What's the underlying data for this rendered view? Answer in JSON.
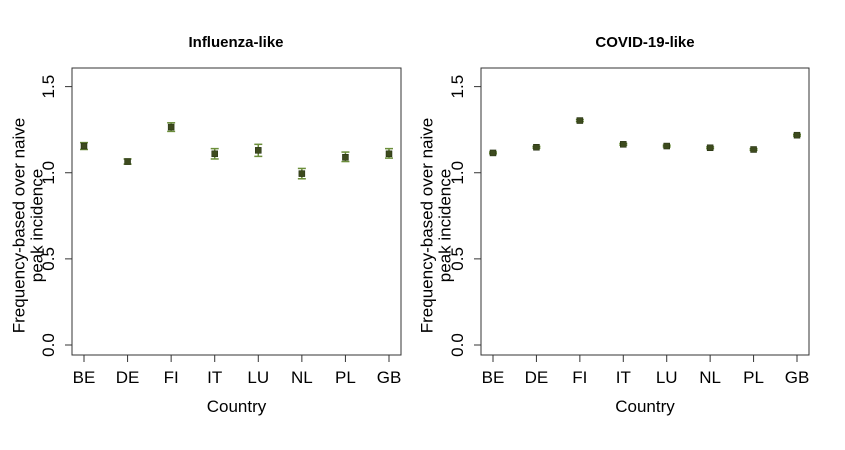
{
  "chart_data": [
    {
      "type": "scatter",
      "title": "Influenza-like",
      "xlabel": "Country",
      "ylabel_lines": [
        "Frequency-based over naive",
        "peak incidence"
      ],
      "categories": [
        "BE",
        "DE",
        "FI",
        "IT",
        "LU",
        "NL",
        "PL",
        "GB"
      ],
      "values": [
        1.155,
        1.065,
        1.265,
        1.11,
        1.13,
        0.995,
        1.09,
        1.11
      ],
      "lower": [
        1.135,
        1.05,
        1.24,
        1.08,
        1.095,
        0.965,
        1.065,
        1.085
      ],
      "upper": [
        1.175,
        1.08,
        1.29,
        1.14,
        1.165,
        1.025,
        1.12,
        1.14
      ],
      "ylim": [
        0,
        1.55
      ],
      "yticks": [
        "0.0",
        "0.5",
        "1.0",
        "1.5"
      ],
      "grid": false,
      "point_color": "#3d4a1e",
      "errorbar_color": "#6b8e3a"
    },
    {
      "type": "scatter",
      "title": "COVID-19-like",
      "xlabel": "Country",
      "ylabel_lines": [
        "Frequency-based over naive",
        "peak incidence"
      ],
      "categories": [
        "BE",
        "DE",
        "FI",
        "IT",
        "LU",
        "NL",
        "PL",
        "GB"
      ],
      "values": [
        1.115,
        1.148,
        1.303,
        1.165,
        1.155,
        1.145,
        1.135,
        1.218
      ],
      "lower": [
        1.11,
        1.143,
        1.297,
        1.16,
        1.15,
        1.14,
        1.13,
        1.213
      ],
      "upper": [
        1.12,
        1.153,
        1.309,
        1.17,
        1.16,
        1.15,
        1.14,
        1.223
      ],
      "ylim": [
        0,
        1.55
      ],
      "yticks": [
        "0.0",
        "0.5",
        "1.0",
        "1.5"
      ],
      "grid": false,
      "point_color": "#3d4a1e",
      "errorbar_color": "#6b8e3a"
    }
  ]
}
